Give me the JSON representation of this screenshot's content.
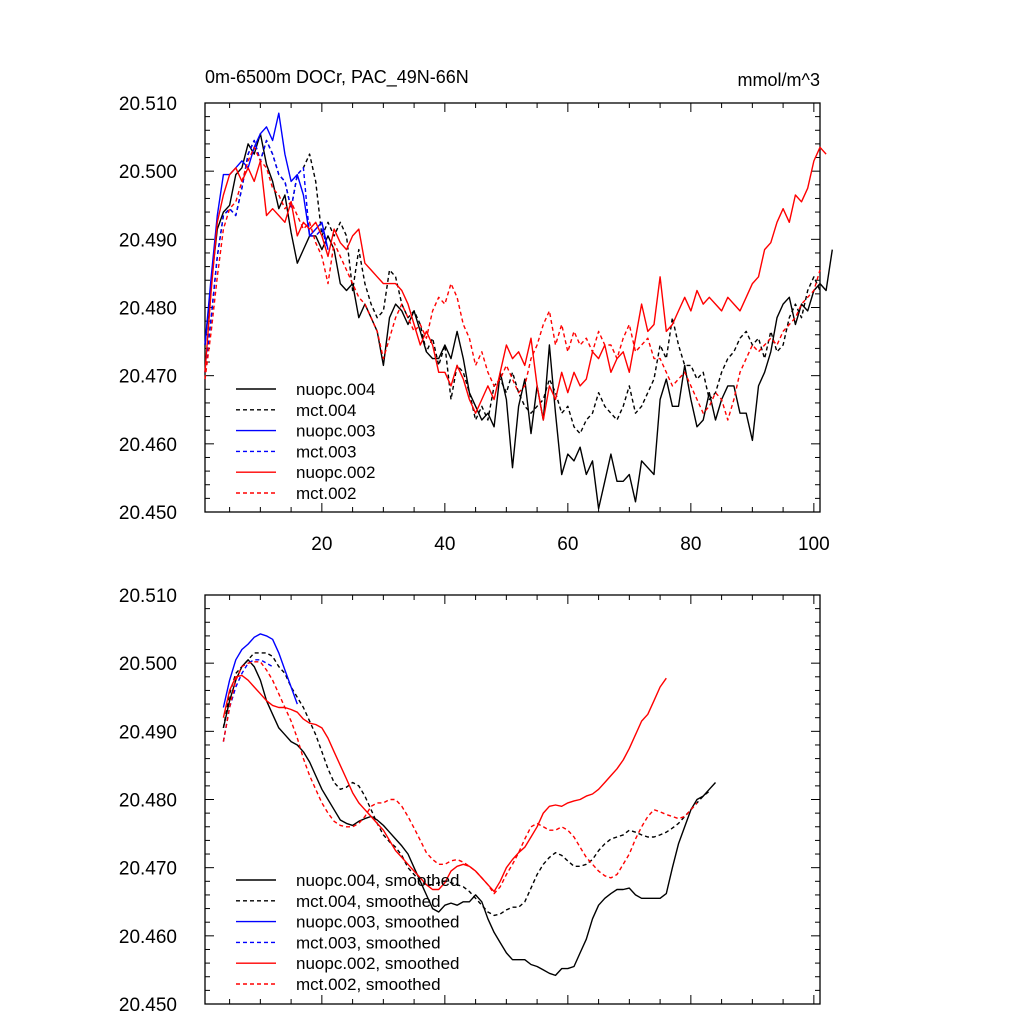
{
  "colors": {
    "black": "#000000",
    "blue": "#0000ff",
    "red": "#ff0000",
    "background": "#ffffff"
  },
  "chart_data": [
    {
      "type": "line",
      "title": "0m-6500m DOCr, PAC_49N-66N",
      "units": "mmol/m^3",
      "xlim": [
        1,
        101
      ],
      "ylim": [
        20.45,
        20.51
      ],
      "xticks": [
        20,
        40,
        60,
        80,
        100
      ],
      "show_xtick_labels": true,
      "yticks": [
        "20.450",
        "20.460",
        "20.470",
        "20.480",
        "20.490",
        "20.500",
        "20.510"
      ],
      "legend_position": "bottom-left",
      "series": [
        {
          "name": "nuopc.004",
          "color": "black",
          "dash": false,
          "x_start": 1,
          "values": [
            20.4745,
            20.4835,
            20.4915,
            20.494,
            20.495,
            20.4995,
            20.5005,
            20.504,
            20.5025,
            20.5055,
            20.501,
            20.4985,
            20.4945,
            20.4965,
            20.491,
            20.4865,
            20.4885,
            20.4905,
            20.4905,
            20.4885,
            20.4905,
            20.4885,
            20.4835,
            20.4825,
            20.4835,
            20.4785,
            20.4805,
            20.4785,
            20.4765,
            20.4715,
            20.4785,
            20.4805,
            20.4795,
            20.4775,
            20.4795,
            20.4765,
            20.4735,
            20.4725,
            20.4725,
            20.4745,
            20.4725,
            20.4765,
            20.4725,
            20.4675,
            20.4655,
            20.4635,
            20.4645,
            20.4625,
            20.4705,
            20.4665,
            20.4565,
            20.4655,
            20.4695,
            20.4615,
            20.4685,
            20.4635,
            20.4745,
            20.4645,
            20.4555,
            20.4585,
            20.4575,
            20.4595,
            20.4555,
            20.4575,
            20.4505,
            20.4545,
            20.4585,
            20.4545,
            20.4545,
            20.4555,
            20.4515,
            20.4575,
            20.4565,
            20.4555,
            20.4665,
            20.4695,
            20.4655,
            20.4655,
            20.4715,
            20.4665,
            20.4625,
            20.4635,
            20.4675,
            20.4635,
            20.4665,
            20.4685,
            20.4685,
            20.4645,
            20.4645,
            20.4605,
            20.4685,
            20.4705,
            20.4735,
            20.4785,
            20.4805,
            20.4815,
            20.4775,
            20.4805,
            20.4795,
            20.4825,
            20.4835,
            20.4825,
            20.4885
          ]
        },
        {
          "name": "mct.004",
          "color": "black",
          "dash": true,
          "x_start": 1,
          "values": [
            20.4705,
            20.4785,
            20.4875,
            20.4935,
            20.4945,
            20.4935,
            20.4975,
            20.5025,
            20.5045,
            20.5015,
            20.5045,
            20.5025,
            20.4995,
            20.4985,
            20.4945,
            20.4995,
            20.5005,
            20.5025,
            20.4985,
            20.4905,
            20.4925,
            20.4905,
            20.4925,
            20.4905,
            20.4825,
            20.4885,
            20.4835,
            20.4805,
            20.4785,
            20.4795,
            20.4855,
            20.4845,
            20.4805,
            20.4785,
            20.4795,
            20.4775,
            20.4735,
            20.4755,
            20.4715,
            20.4745,
            20.4665,
            20.4715,
            20.4705,
            20.4675,
            20.4635,
            20.4655,
            20.4635,
            20.4685,
            20.4695,
            20.4675,
            20.4705,
            20.4675,
            20.4655,
            20.4645,
            20.4655,
            20.4665,
            20.4695,
            20.4675,
            20.4645,
            20.4655,
            20.4625,
            20.4615,
            20.4635,
            20.4645,
            20.4675,
            20.4655,
            20.4645,
            20.4635,
            20.4655,
            20.4685,
            20.4645,
            20.4655,
            20.4675,
            20.4695,
            20.4745,
            20.4725,
            20.4785,
            20.4745,
            20.4715,
            20.4715,
            20.4695,
            20.4705,
            20.4665,
            20.4675,
            20.4705,
            20.4725,
            20.4735,
            20.4755,
            20.4765,
            20.4745,
            20.4755,
            20.4725,
            20.4765,
            20.4735,
            20.4745,
            20.4785,
            20.4805,
            20.4785,
            20.4825,
            20.4845,
            20.4825
          ]
        },
        {
          "name": "nuopc.003",
          "color": "blue",
          "dash": false,
          "x_start": 1,
          "values": [
            20.4745,
            20.4845,
            20.4935,
            20.4995,
            20.4995,
            20.5005,
            20.5015,
            20.5005,
            20.5035,
            20.5055,
            20.5065,
            20.5045,
            20.5085,
            20.5025,
            20.4985,
            20.4995,
            20.4965,
            20.4905,
            20.4915,
            20.4925,
            20.4885
          ]
        },
        {
          "name": "mct.003",
          "color": "blue",
          "dash": true,
          "x_start": 1,
          "values": [
            20.4705,
            20.4785,
            20.4875,
            20.4935,
            20.4945,
            20.4935,
            20.4975,
            20.5025,
            20.5045,
            20.5015,
            20.5045,
            20.5025,
            20.4995,
            20.4985,
            20.4945,
            20.4995,
            20.5005,
            20.4905,
            20.4905,
            20.4915,
            20.4885
          ]
        },
        {
          "name": "nuopc.002",
          "color": "red",
          "dash": false,
          "x_start": 1,
          "values": [
            20.4705,
            20.4825,
            20.4925,
            20.4965,
            20.4995,
            20.5005,
            20.4985,
            20.5005,
            20.4985,
            20.5015,
            20.4935,
            20.4945,
            20.4935,
            20.4925,
            20.4955,
            20.4905,
            20.4925,
            20.4915,
            20.4925,
            20.4905,
            20.4875,
            20.4915,
            20.4895,
            20.4885,
            20.4905,
            20.4915,
            20.4865,
            20.4855,
            20.4845,
            20.4835,
            20.4835,
            20.4835,
            20.4825,
            20.4805,
            20.4775,
            20.4745,
            20.4765,
            20.4745,
            20.4705,
            20.4705,
            20.4685,
            20.4715,
            20.4695,
            20.4665,
            20.4645,
            20.4665,
            20.4685,
            20.4665,
            20.4705,
            20.4745,
            20.4725,
            20.4735,
            20.4715,
            20.4755,
            20.4685,
            20.4635,
            20.4685,
            20.4665,
            20.4705,
            20.4675,
            20.4705,
            20.4685,
            20.4695,
            20.4735,
            20.4725,
            20.4745,
            20.4705,
            20.4725,
            20.4735,
            20.4705,
            20.4755,
            20.4805,
            20.4765,
            20.4775,
            20.4845,
            20.4765,
            20.4775,
            20.4795,
            20.4815,
            20.4795,
            20.4825,
            20.4805,
            20.4815,
            20.4805,
            20.4795,
            20.4815,
            20.4805,
            20.4795,
            20.4815,
            20.4835,
            20.4845,
            20.4885,
            20.4895,
            20.4925,
            20.4945,
            20.4925,
            20.4965,
            20.4955,
            20.4975,
            20.5015,
            20.5035,
            20.5025
          ]
        },
        {
          "name": "mct.002",
          "color": "red",
          "dash": true,
          "x_start": 1,
          "values": [
            20.4695,
            20.4765,
            20.4845,
            20.4915,
            20.4945,
            20.4955,
            20.4985,
            20.5015,
            20.5035,
            20.5015,
            20.5005,
            20.4975,
            20.4965,
            20.4945,
            20.4955,
            20.4935,
            20.4915,
            20.4925,
            20.4895,
            20.4875,
            20.4835,
            20.4895,
            20.4875,
            20.4855,
            20.4835,
            20.4815,
            20.4805,
            20.4785,
            20.4765,
            20.4725,
            20.4755,
            20.4785,
            20.4805,
            20.4785,
            20.4765,
            20.4775,
            20.4755,
            20.4795,
            20.4815,
            20.4805,
            20.4835,
            20.4815,
            20.4775,
            20.4755,
            20.4715,
            20.4735,
            20.4705,
            20.4685,
            20.4695,
            20.4715,
            20.4695,
            20.4675,
            20.4685,
            20.4725,
            20.4745,
            20.4775,
            20.4795,
            20.4745,
            20.4775,
            20.4735,
            20.4765,
            20.4745,
            20.4755,
            20.4735,
            20.4765,
            20.4745,
            20.4745,
            20.4725,
            20.4755,
            20.4775,
            20.4735,
            20.4745,
            20.4755,
            20.4725,
            20.4725,
            20.4705,
            20.4685,
            20.4695,
            20.4705,
            20.4685,
            20.4665,
            20.4645,
            20.4655,
            20.4675,
            20.4665,
            20.4635,
            20.4665,
            20.4705,
            20.4725,
            20.4745,
            20.4735,
            20.4745,
            20.4755,
            20.4745,
            20.4765,
            20.4775,
            20.4785,
            20.4805,
            20.4815,
            20.4825,
            20.4855
          ]
        }
      ]
    },
    {
      "type": "line",
      "title": "",
      "units": "",
      "xlim": [
        1,
        101
      ],
      "ylim": [
        20.45,
        20.51
      ],
      "xticks": [
        20,
        40,
        60,
        80,
        100
      ],
      "show_xtick_labels": false,
      "yticks": [
        "20.450",
        "20.460",
        "20.470",
        "20.480",
        "20.490",
        "20.500",
        "20.510"
      ],
      "legend_position": "bottom-left",
      "series": [
        {
          "name": "nuopc.004, smoothed",
          "color": "black",
          "dash": false,
          "x_start": 4,
          "values": [
            20.4905,
            20.4945,
            20.4975,
            20.4995,
            20.5005,
            20.4995,
            20.4975,
            20.4945,
            20.4925,
            20.4905,
            20.4895,
            20.4885,
            20.488,
            20.487,
            20.4855,
            20.4835,
            20.4815,
            20.48,
            20.4785,
            20.477,
            20.4765,
            20.4762,
            20.4768,
            20.4772,
            20.4775,
            20.477,
            20.4762,
            20.4752,
            20.4742,
            20.4732,
            20.472,
            20.47,
            20.468,
            20.466,
            20.464,
            20.4635,
            20.4645,
            20.4648,
            20.4645,
            20.465,
            20.465,
            20.466,
            20.465,
            20.4625,
            20.4605,
            20.459,
            20.4575,
            20.4565,
            20.4565,
            20.4565,
            20.4558,
            20.4555,
            20.455,
            20.4545,
            20.4542,
            20.4552,
            20.4552,
            20.4555,
            20.4575,
            20.4595,
            20.4625,
            20.4645,
            20.4655,
            20.4662,
            20.4668,
            20.4668,
            20.467,
            20.466,
            20.4655,
            20.4655,
            20.4655,
            20.4655,
            20.4662,
            20.47,
            20.4735,
            20.476,
            20.4785,
            20.48,
            20.4805,
            20.4815,
            20.4825
          ]
        },
        {
          "name": "mct.004, smoothed",
          "color": "black",
          "dash": true,
          "x_start": 4,
          "values": [
            20.4905,
            20.4955,
            20.4985,
            20.4995,
            20.5005,
            20.5015,
            20.5015,
            20.5015,
            20.501,
            20.4995,
            20.4985,
            20.4965,
            20.495,
            20.4935,
            20.4915,
            20.4895,
            20.487,
            20.4845,
            20.4825,
            20.4815,
            20.4818,
            20.4825,
            20.482,
            20.4805,
            20.4785,
            20.4765,
            20.4748,
            20.4738,
            20.473,
            20.4718,
            20.47,
            20.469,
            20.468,
            20.4675,
            20.4675,
            20.4678,
            20.468,
            20.4678,
            20.4675,
            20.4672,
            20.4665,
            20.4655,
            20.4645,
            20.4635,
            20.463,
            20.4632,
            20.4638,
            20.4642,
            20.4642,
            20.465,
            20.467,
            20.469,
            20.4705,
            20.4715,
            20.4722,
            20.4718,
            20.471,
            20.4702,
            20.4702,
            20.4705,
            20.4712,
            20.4725,
            20.4735,
            20.4742,
            20.4745,
            20.4748,
            20.4755,
            20.4752,
            20.4748,
            20.4745,
            20.4745,
            20.4748,
            20.4752,
            20.4758,
            20.4765,
            20.4775,
            20.4785,
            20.4795,
            20.4805,
            20.4812
          ]
        },
        {
          "name": "nuopc.003, smoothed",
          "color": "blue",
          "dash": false,
          "x_start": 4,
          "values": [
            20.4935,
            20.4975,
            20.5005,
            20.502,
            20.5028,
            20.5038,
            20.5043,
            20.504,
            20.5035,
            20.5015,
            20.499,
            20.4965,
            20.494
          ]
        },
        {
          "name": "mct.003, smoothed",
          "color": "blue",
          "dash": true,
          "x_start": 4,
          "values": [
            20.4885,
            20.4935,
            20.4965,
            20.4985,
            20.5,
            20.5005,
            20.5005,
            20.5,
            20.4995
          ]
        },
        {
          "name": "nuopc.002, smoothed",
          "color": "red",
          "dash": false,
          "x_start": 4,
          "values": [
            20.492,
            20.496,
            20.498,
            20.4982,
            20.4975,
            20.4965,
            20.4955,
            20.4945,
            20.4938,
            20.4935,
            20.4935,
            20.4932,
            20.4928,
            20.4918,
            20.4912,
            20.491,
            20.4905,
            20.489,
            20.487,
            20.485,
            20.483,
            20.481,
            20.4795,
            20.4785,
            20.4775,
            20.4765,
            20.4755,
            20.474,
            20.4725,
            20.4715,
            20.4705,
            20.4695,
            20.4685,
            20.4675,
            20.4668,
            20.4668,
            20.4678,
            20.4695,
            20.4702,
            20.4705,
            20.4702,
            20.4695,
            20.4685,
            20.4675,
            20.4665,
            20.468,
            20.47,
            20.4712,
            20.4722,
            20.473,
            20.4745,
            20.476,
            20.478,
            20.479,
            20.4792,
            20.479,
            20.4795,
            20.4798,
            20.48,
            20.4805,
            20.4808,
            20.4815,
            20.4825,
            20.4835,
            20.4845,
            20.4858,
            20.4875,
            20.4895,
            20.4915,
            20.4925,
            20.4945,
            20.4965,
            20.4978
          ]
        },
        {
          "name": "mct.002, smoothed",
          "color": "red",
          "dash": true,
          "x_start": 4,
          "values": [
            20.4885,
            20.4935,
            20.4975,
            20.4995,
            20.5,
            20.5002,
            20.5002,
            20.499,
            20.4975,
            20.4955,
            20.4935,
            20.4915,
            20.489,
            20.486,
            20.4835,
            20.4815,
            20.4795,
            20.478,
            20.4768,
            20.4762,
            20.476,
            20.476,
            20.4765,
            20.4775,
            20.479,
            20.4795,
            20.4795,
            20.48,
            20.48,
            20.479,
            20.4775,
            20.4758,
            20.474,
            20.4722,
            20.4712,
            20.4705,
            20.4705,
            20.471,
            20.4712,
            20.4708,
            20.4702,
            20.4695,
            20.4685,
            20.4675,
            20.4662,
            20.4672,
            20.469,
            20.4705,
            20.4722,
            20.4742,
            20.476,
            20.4765,
            20.476,
            20.4755,
            20.4755,
            20.476,
            20.4755,
            20.4745,
            20.473,
            20.4715,
            20.4705,
            20.4695,
            20.4688,
            20.4685,
            20.469,
            20.4705,
            20.472,
            20.4742,
            20.476,
            20.4775,
            20.4785,
            20.4782,
            20.4778,
            20.4775,
            20.4772,
            20.4775,
            20.4785,
            20.4795
          ]
        }
      ]
    }
  ]
}
